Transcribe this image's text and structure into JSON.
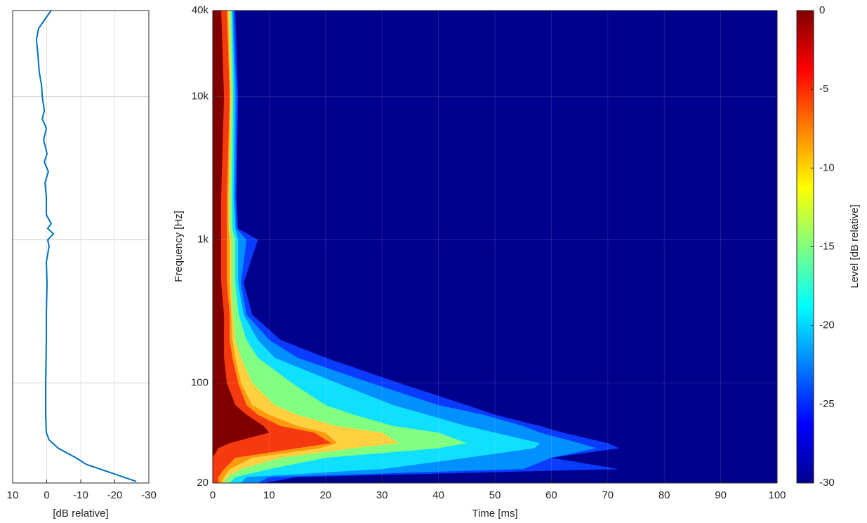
{
  "chart_data": [
    {
      "type": "line",
      "xlabel": "[dB relative]",
      "xlim": [
        10,
        -30
      ],
      "xticks": [
        10,
        0,
        -10,
        -20,
        -30
      ],
      "ylim": [
        20,
        40000
      ],
      "log_y": true,
      "ygrid": [
        100,
        1000,
        10000
      ],
      "grid": true,
      "color": "#0072bd",
      "y": [
        20.5,
        27,
        30,
        35,
        40,
        45,
        60,
        100,
        200,
        300,
        500,
        700,
        900,
        1000,
        1100,
        1200,
        1300,
        1500,
        2000,
        2500,
        3000,
        3500,
        4000,
        5000,
        6000,
        7000,
        8000,
        10000,
        12000,
        15000,
        20000,
        25000,
        30000,
        40000
      ],
      "values": [
        -26.3,
        -11.6,
        -8.6,
        -3.4,
        -0.7,
        0.1,
        0.3,
        0.3,
        0.1,
        0.1,
        -0.1,
        0.1,
        -0.7,
        -0.3,
        -2,
        -0.3,
        -1.3,
        0.1,
        0.1,
        0.5,
        -0.5,
        0.7,
        -0.1,
        0.9,
        0.1,
        1.3,
        0.7,
        1.3,
        1.5,
        2.2,
        2.6,
        3,
        2.4,
        -1.3
      ]
    },
    {
      "type": "contour",
      "xlabel": "Time [ms]",
      "ylabel": "Frequency [Hz]",
      "xlim": [
        0,
        100
      ],
      "xticks": [
        0,
        10,
        20,
        30,
        40,
        50,
        60,
        70,
        80,
        90,
        100
      ],
      "ylim": [
        20,
        40000
      ],
      "yticks": [
        20,
        100,
        {
          "value": 1000,
          "label": "1k"
        },
        {
          "value": 10000,
          "label": "10k"
        },
        {
          "value": 40000,
          "label": "40k"
        }
      ],
      "log_y": true,
      "grid": true,
      "background_color": "#00008f",
      "frequencies": [
        20,
        22,
        25,
        30,
        35,
        38,
        45,
        50,
        60,
        70,
        100,
        150,
        200,
        300,
        500,
        1000,
        1200,
        2000,
        10000,
        40000
      ],
      "series": [
        {
          "level": -26.7,
          "color": "#0a3cff",
          "times": [
            9,
            15,
            72,
            60,
            72,
            70,
            62,
            58,
            50,
            45,
            33,
            20,
            12,
            7,
            5.5,
            8,
            4.5,
            4.2,
            4.5,
            4
          ]
        },
        {
          "level": -23.3,
          "color": "#0090ff",
          "times": [
            8,
            10,
            55,
            60,
            68,
            65,
            58,
            55,
            48,
            40,
            28,
            15,
            10,
            6,
            5,
            6,
            4.2,
            4,
            4.2,
            3.7
          ]
        },
        {
          "level": -20,
          "color": "#10e0ff",
          "times": [
            5,
            6,
            30,
            45,
            57,
            58,
            50,
            45,
            38,
            32,
            22,
            11,
            8,
            5.5,
            4.5,
            4.5,
            4,
            3.7,
            3.9,
            3.5
          ]
        },
        {
          "level": -16.7,
          "color": "#80ff80",
          "times": [
            3,
            4,
            10,
            20,
            40,
            45,
            40,
            32,
            25,
            20,
            14,
            8,
            6,
            4.6,
            4,
            4,
            3.5,
            3.4,
            3.6,
            3.3
          ]
        },
        {
          "level": -13.3,
          "color": "#ffd040",
          "times": [
            2,
            2.5,
            5,
            12,
            25,
            33,
            30,
            22,
            15,
            11,
            7,
            5,
            4,
            3.6,
            3.3,
            3.3,
            3,
            3,
            3.3,
            3
          ]
        },
        {
          "level": -10,
          "color": "#ff9a10",
          "times": [
            1.5,
            2,
            3,
            7,
            19,
            22,
            20,
            15,
            10,
            7,
            5,
            4,
            3.5,
            3.3,
            3,
            3,
            2.8,
            2.8,
            3.1,
            2.7
          ]
        },
        {
          "level": -6.7,
          "color": "#f53a10",
          "times": [
            1,
            1,
            2,
            4,
            15,
            21,
            18,
            12,
            8,
            6,
            4.5,
            3.5,
            3,
            3,
            2.5,
            2.5,
            2.5,
            2.5,
            3,
            2.5
          ]
        },
        {
          "level": -3.3,
          "color": "#800000",
          "times": [
            0,
            0,
            0,
            0,
            1,
            3,
            10,
            9,
            6,
            4,
            2.5,
            2,
            2,
            2,
            1.5,
            1.5,
            1.5,
            1.5,
            2,
            1.5
          ]
        }
      ],
      "colorbar": {
        "label": "Level [dB relative]",
        "lim": [
          -30,
          0
        ],
        "ticks": [
          0,
          -5,
          -10,
          -15,
          -20,
          -25,
          -30
        ],
        "colormap": [
          "#00008f",
          "#0000ff",
          "#0080ff",
          "#00ffff",
          "#80ff80",
          "#ffff00",
          "#ff8000",
          "#ff0000",
          "#800000"
        ]
      }
    }
  ]
}
